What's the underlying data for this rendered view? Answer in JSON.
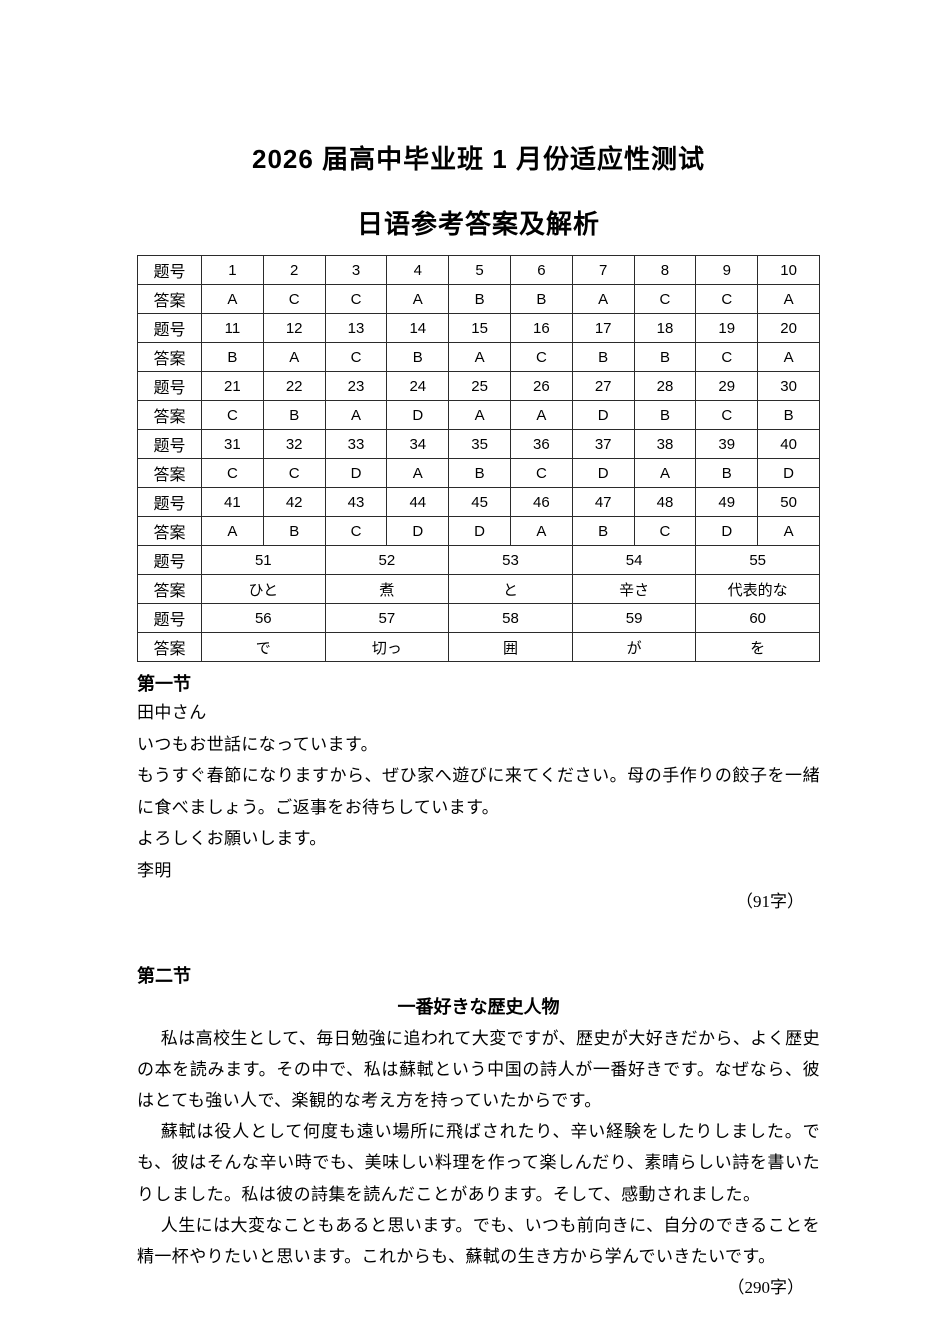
{
  "header": {
    "title": "2026 届高中毕业班 1 月份适应性测试",
    "subtitle": "日语参考答案及解析"
  },
  "answer_table": {
    "question_label": "题号",
    "answer_label": "答案",
    "rows": [
      {
        "label": "题号",
        "span": 1,
        "cells": [
          "1",
          "2",
          "3",
          "4",
          "5",
          "6",
          "7",
          "8",
          "9",
          "10"
        ]
      },
      {
        "label": "答案",
        "span": 1,
        "cells": [
          "A",
          "C",
          "C",
          "A",
          "B",
          "B",
          "A",
          "C",
          "C",
          "A"
        ]
      },
      {
        "label": "题号",
        "span": 1,
        "cells": [
          "11",
          "12",
          "13",
          "14",
          "15",
          "16",
          "17",
          "18",
          "19",
          "20"
        ]
      },
      {
        "label": "答案",
        "span": 1,
        "cells": [
          "B",
          "A",
          "C",
          "B",
          "A",
          "C",
          "B",
          "B",
          "C",
          "A"
        ]
      },
      {
        "label": "题号",
        "span": 1,
        "cells": [
          "21",
          "22",
          "23",
          "24",
          "25",
          "26",
          "27",
          "28",
          "29",
          "30"
        ]
      },
      {
        "label": "答案",
        "span": 1,
        "cells": [
          "C",
          "B",
          "A",
          "D",
          "A",
          "A",
          "D",
          "B",
          "C",
          "B"
        ]
      },
      {
        "label": "题号",
        "span": 1,
        "cells": [
          "31",
          "32",
          "33",
          "34",
          "35",
          "36",
          "37",
          "38",
          "39",
          "40"
        ]
      },
      {
        "label": "答案",
        "span": 1,
        "cells": [
          "C",
          "C",
          "D",
          "A",
          "B",
          "C",
          "D",
          "A",
          "B",
          "D"
        ]
      },
      {
        "label": "题号",
        "span": 1,
        "cells": [
          "41",
          "42",
          "43",
          "44",
          "45",
          "46",
          "47",
          "48",
          "49",
          "50"
        ]
      },
      {
        "label": "答案",
        "span": 1,
        "cells": [
          "A",
          "B",
          "C",
          "D",
          "D",
          "A",
          "B",
          "C",
          "D",
          "A"
        ]
      },
      {
        "label": "题号",
        "span": 2,
        "cells": [
          "51",
          "52",
          "53",
          "54",
          "55"
        ]
      },
      {
        "label": "答案",
        "span": 2,
        "cells": [
          "ひと",
          "煮",
          "と",
          "辛さ",
          "代表的な"
        ]
      },
      {
        "label": "题号",
        "span": 2,
        "cells": [
          "56",
          "57",
          "58",
          "59",
          "60"
        ]
      },
      {
        "label": "答案",
        "span": 2,
        "cells": [
          "で",
          "切っ",
          "囲",
          "が",
          "を"
        ]
      }
    ]
  },
  "section1": {
    "heading": "第一节",
    "lines": [
      "田中さん",
      "いつもお世話になっています。",
      "もうすぐ春節になりますから、ぜひ家へ遊びに来てください。母の手作りの餃子を一緒に食べましょう。ご返事をお待ちしています。",
      "よろしくお願いします。",
      "李明"
    ],
    "char_count": "（91字）"
  },
  "section2": {
    "heading": "第二节",
    "essay_title": "一番好きな歴史人物",
    "paragraphs": [
      "私は高校生として、毎日勉強に追われて大変ですが、歴史が大好きだから、よく歴史の本を読みます。その中で、私は蘇軾という中国の詩人が一番好きです。なぜなら、彼はとても強い人で、楽観的な考え方を持っていたからです。",
      "蘇軾は役人として何度も遠い場所に飛ばされたり、辛い経験をしたりしました。でも、彼はそんな辛い時でも、美味しい料理を作って楽しんだり、素晴らしい詩を書いたりしました。私は彼の詩集を読んだことがあります。そして、感動されました。",
      "人生には大変なこともあると思います。でも、いつも前向きに、自分のできることを精一杯やりたいと思います。これからも、蘇軾の生き方から学んでいきたいです。"
    ],
    "char_count": "（290字）"
  }
}
